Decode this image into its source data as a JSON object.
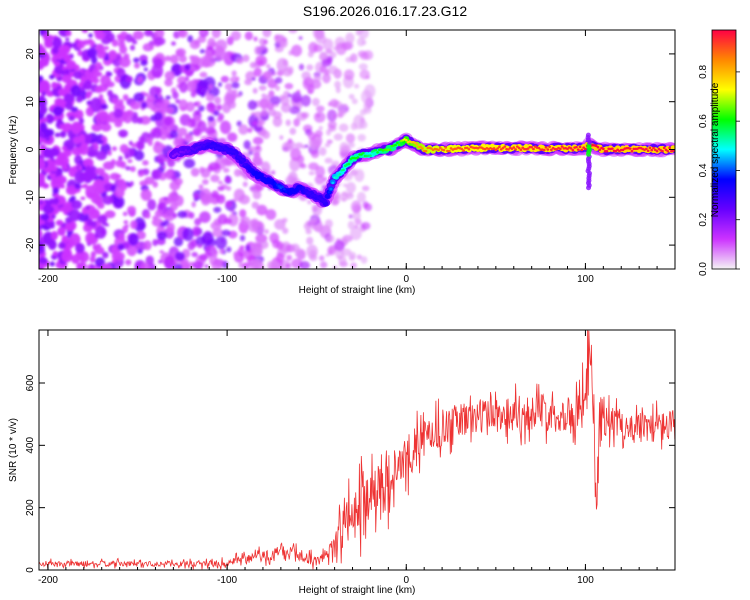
{
  "figure_title": "S196.2026.016.17.23.G12",
  "chart_data": [
    {
      "type": "heatmap",
      "title": "S196.2026.016.17.23.G12",
      "xlabel": "Height of straight line (km)",
      "ylabel": "Frequency (Hz)",
      "xlim": [
        -205,
        150
      ],
      "ylim": [
        -25,
        25
      ],
      "x_ticks": [
        -200,
        -100,
        0,
        100
      ],
      "y_ticks": [
        -20,
        -10,
        0,
        10,
        20
      ],
      "x_tick_labels": [
        "-200",
        "-100",
        "0",
        "100"
      ],
      "y_tick_labels": [
        "-20",
        "-10",
        "0",
        "10",
        "20"
      ],
      "colorbar": {
        "label": "Normalized spectral amplitude",
        "range": [
          0,
          0.97
        ],
        "ticks": [
          0.0,
          0.2,
          0.4,
          0.6,
          0.8
        ],
        "tick_labels": [
          "0.0",
          "0.2",
          "0.4",
          "0.6",
          "0.8"
        ],
        "colors": [
          "#f4f4f4",
          "#cc33ff",
          "#6600ff",
          "#0000ff",
          "#00ffff",
          "#00ff00",
          "#ffff00",
          "#ff8800",
          "#ff0044"
        ]
      },
      "ridge": {
        "name": "dominant frequency trace",
        "x": [
          -130,
          -120,
          -110,
          -100,
          -95,
          -90,
          -85,
          -80,
          -75,
          -70,
          -65,
          -60,
          -55,
          -50,
          -45,
          -40,
          -35,
          -30,
          -25,
          -20,
          -15,
          -10,
          -5,
          0,
          5,
          10,
          20,
          40,
          60,
          80,
          100,
          102,
          110,
          130,
          150
        ],
        "y": [
          -1,
          0,
          1,
          0,
          -1,
          -3,
          -5,
          -6,
          -7,
          -8,
          -9,
          -8,
          -9,
          -10,
          -11,
          -6,
          -4,
          -2,
          -1,
          -1,
          0,
          0,
          1,
          2,
          1,
          0,
          0,
          0.3,
          0.3,
          0.2,
          0.3,
          1,
          0,
          0,
          0
        ],
        "amplitude": [
          0.2,
          0.25,
          0.3,
          0.3,
          0.3,
          0.3,
          0.35,
          0.35,
          0.35,
          0.4,
          0.35,
          0.35,
          0.3,
          0.3,
          0.3,
          0.5,
          0.55,
          0.6,
          0.6,
          0.55,
          0.6,
          0.65,
          0.6,
          0.75,
          0.8,
          0.85,
          0.88,
          0.9,
          0.92,
          0.93,
          0.95,
          0.97,
          0.96,
          0.95,
          0.95
        ]
      },
      "noise_region": [
        -205,
        -40
      ]
    },
    {
      "type": "line",
      "title": "",
      "xlabel": "Height of straight line (km)",
      "ylabel": "SNR (10 * v/v)",
      "xlim": [
        -205,
        150
      ],
      "ylim": [
        0,
        770
      ],
      "x_ticks": [
        -200,
        -100,
        0,
        100
      ],
      "y_ticks": [
        0,
        200,
        400,
        600
      ],
      "x_tick_labels": [
        "-200",
        "-100",
        "0",
        "100"
      ],
      "y_tick_labels": [
        "0",
        "200",
        "400",
        "600"
      ],
      "series": [
        {
          "name": "SNR",
          "color": "#ee3333",
          "x": [
            -205,
            -190,
            -175,
            -160,
            -145,
            -130,
            -115,
            -100,
            -90,
            -80,
            -70,
            -60,
            -55,
            -50,
            -45,
            -40,
            -35,
            -30,
            -25,
            -20,
            -15,
            -10,
            -5,
            0,
            5,
            10,
            15,
            20,
            25,
            30,
            40,
            50,
            60,
            70,
            80,
            90,
            95,
            100,
            102,
            104,
            106,
            108,
            110,
            120,
            130,
            140,
            150
          ],
          "values": [
            20,
            20,
            20,
            20,
            20,
            20,
            20,
            20,
            35,
            45,
            50,
            50,
            40,
            25,
            50,
            95,
            140,
            170,
            210,
            250,
            270,
            290,
            320,
            360,
            390,
            420,
            440,
            455,
            470,
            480,
            495,
            500,
            505,
            505,
            510,
            500,
            510,
            550,
            700,
            600,
            200,
            450,
            480,
            470,
            455,
            460,
            465
          ],
          "spike_amplitude": [
            12,
            12,
            12,
            12,
            12,
            12,
            14,
            16,
            22,
            28,
            30,
            30,
            26,
            20,
            30,
            60,
            90,
            110,
            120,
            120,
            120,
            115,
            110,
            100,
            95,
            90,
            85,
            85,
            80,
            80,
            80,
            80,
            80,
            80,
            80,
            80,
            80,
            100,
            150,
            150,
            150,
            100,
            70,
            70,
            70,
            70,
            70
          ]
        }
      ]
    }
  ]
}
